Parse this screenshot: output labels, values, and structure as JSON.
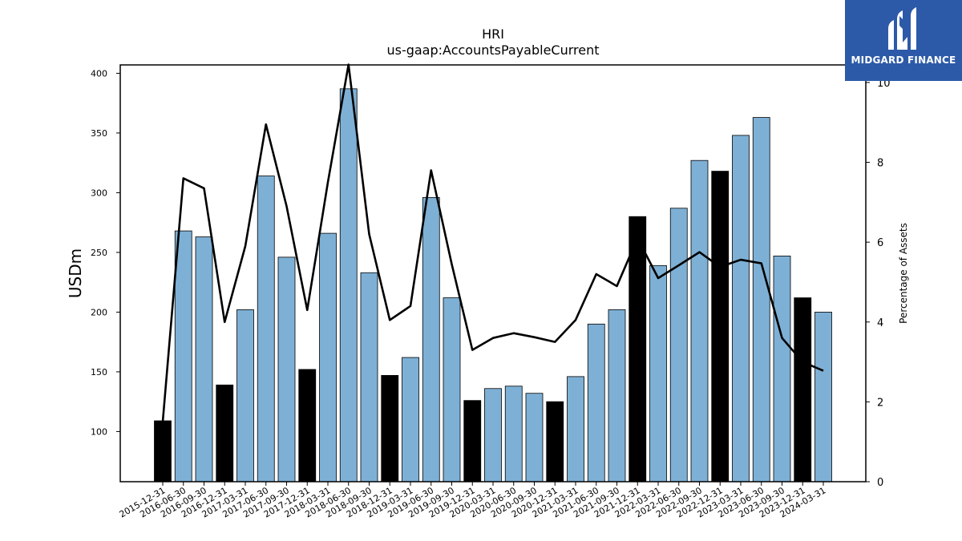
{
  "brand": {
    "logo_text": "MIDGARD FINANCE",
    "bg_color": "#2d5aa8"
  },
  "chart_data": {
    "type": "bar",
    "title": "HRI",
    "subtitle": "us-gaap:AccountsPayableCurrent",
    "ylabel": "USDm",
    "y2label": "Percentage of Assets",
    "ylim": [
      58,
      407
    ],
    "y2lim": [
      0,
      10.44
    ],
    "yticks": [
      100,
      150,
      200,
      250,
      300,
      350,
      400
    ],
    "y2ticks": [
      0,
      2,
      4,
      6,
      8,
      10
    ],
    "bar_colors": {
      "year_end": "#000000",
      "quarter": "#7eb0d5"
    },
    "line_color": "#000000",
    "categories": [
      "2015-12-31",
      "2016-06-30",
      "2016-09-30",
      "2016-12-31",
      "2017-03-31",
      "2017-06-30",
      "2017-09-30",
      "2017-12-31",
      "2018-03-31",
      "2018-06-30",
      "2018-09-30",
      "2018-12-31",
      "2019-03-31",
      "2019-06-30",
      "2019-09-30",
      "2019-12-31",
      "2020-03-31",
      "2020-06-30",
      "2020-09-30",
      "2020-12-31",
      "2021-03-31",
      "2021-06-30",
      "2021-09-30",
      "2021-12-31",
      "2022-03-31",
      "2022-06-30",
      "2022-09-30",
      "2022-12-31",
      "2023-03-31",
      "2023-06-30",
      "2023-09-30",
      "2023-12-31",
      "2024-03-31"
    ],
    "series": [
      {
        "type": "bar",
        "values": [
          109,
          268,
          263,
          139,
          202,
          314,
          246,
          152,
          266,
          387,
          233,
          147,
          162,
          296,
          212,
          126,
          136,
          138,
          132,
          125,
          146,
          190,
          202,
          280,
          239,
          287,
          327,
          318,
          348,
          363,
          247,
          212,
          200
        ],
        "year_end": [
          true,
          false,
          false,
          true,
          false,
          false,
          false,
          true,
          false,
          false,
          false,
          true,
          false,
          false,
          false,
          true,
          false,
          false,
          false,
          true,
          false,
          false,
          false,
          true,
          false,
          false,
          false,
          true,
          false,
          false,
          false,
          true,
          false
        ]
      },
      {
        "type": "line",
        "axis": "right",
        "values": [
          1.5,
          7.6,
          7.35,
          4.0,
          5.9,
          8.95,
          6.9,
          4.3,
          7.5,
          10.45,
          6.2,
          4.05,
          4.4,
          7.8,
          5.45,
          3.3,
          3.6,
          3.72,
          3.62,
          3.5,
          4.05,
          5.2,
          4.9,
          6.1,
          5.1,
          5.42,
          5.75,
          5.38,
          5.56,
          5.47,
          3.6,
          3.0,
          2.78
        ]
      }
    ]
  }
}
